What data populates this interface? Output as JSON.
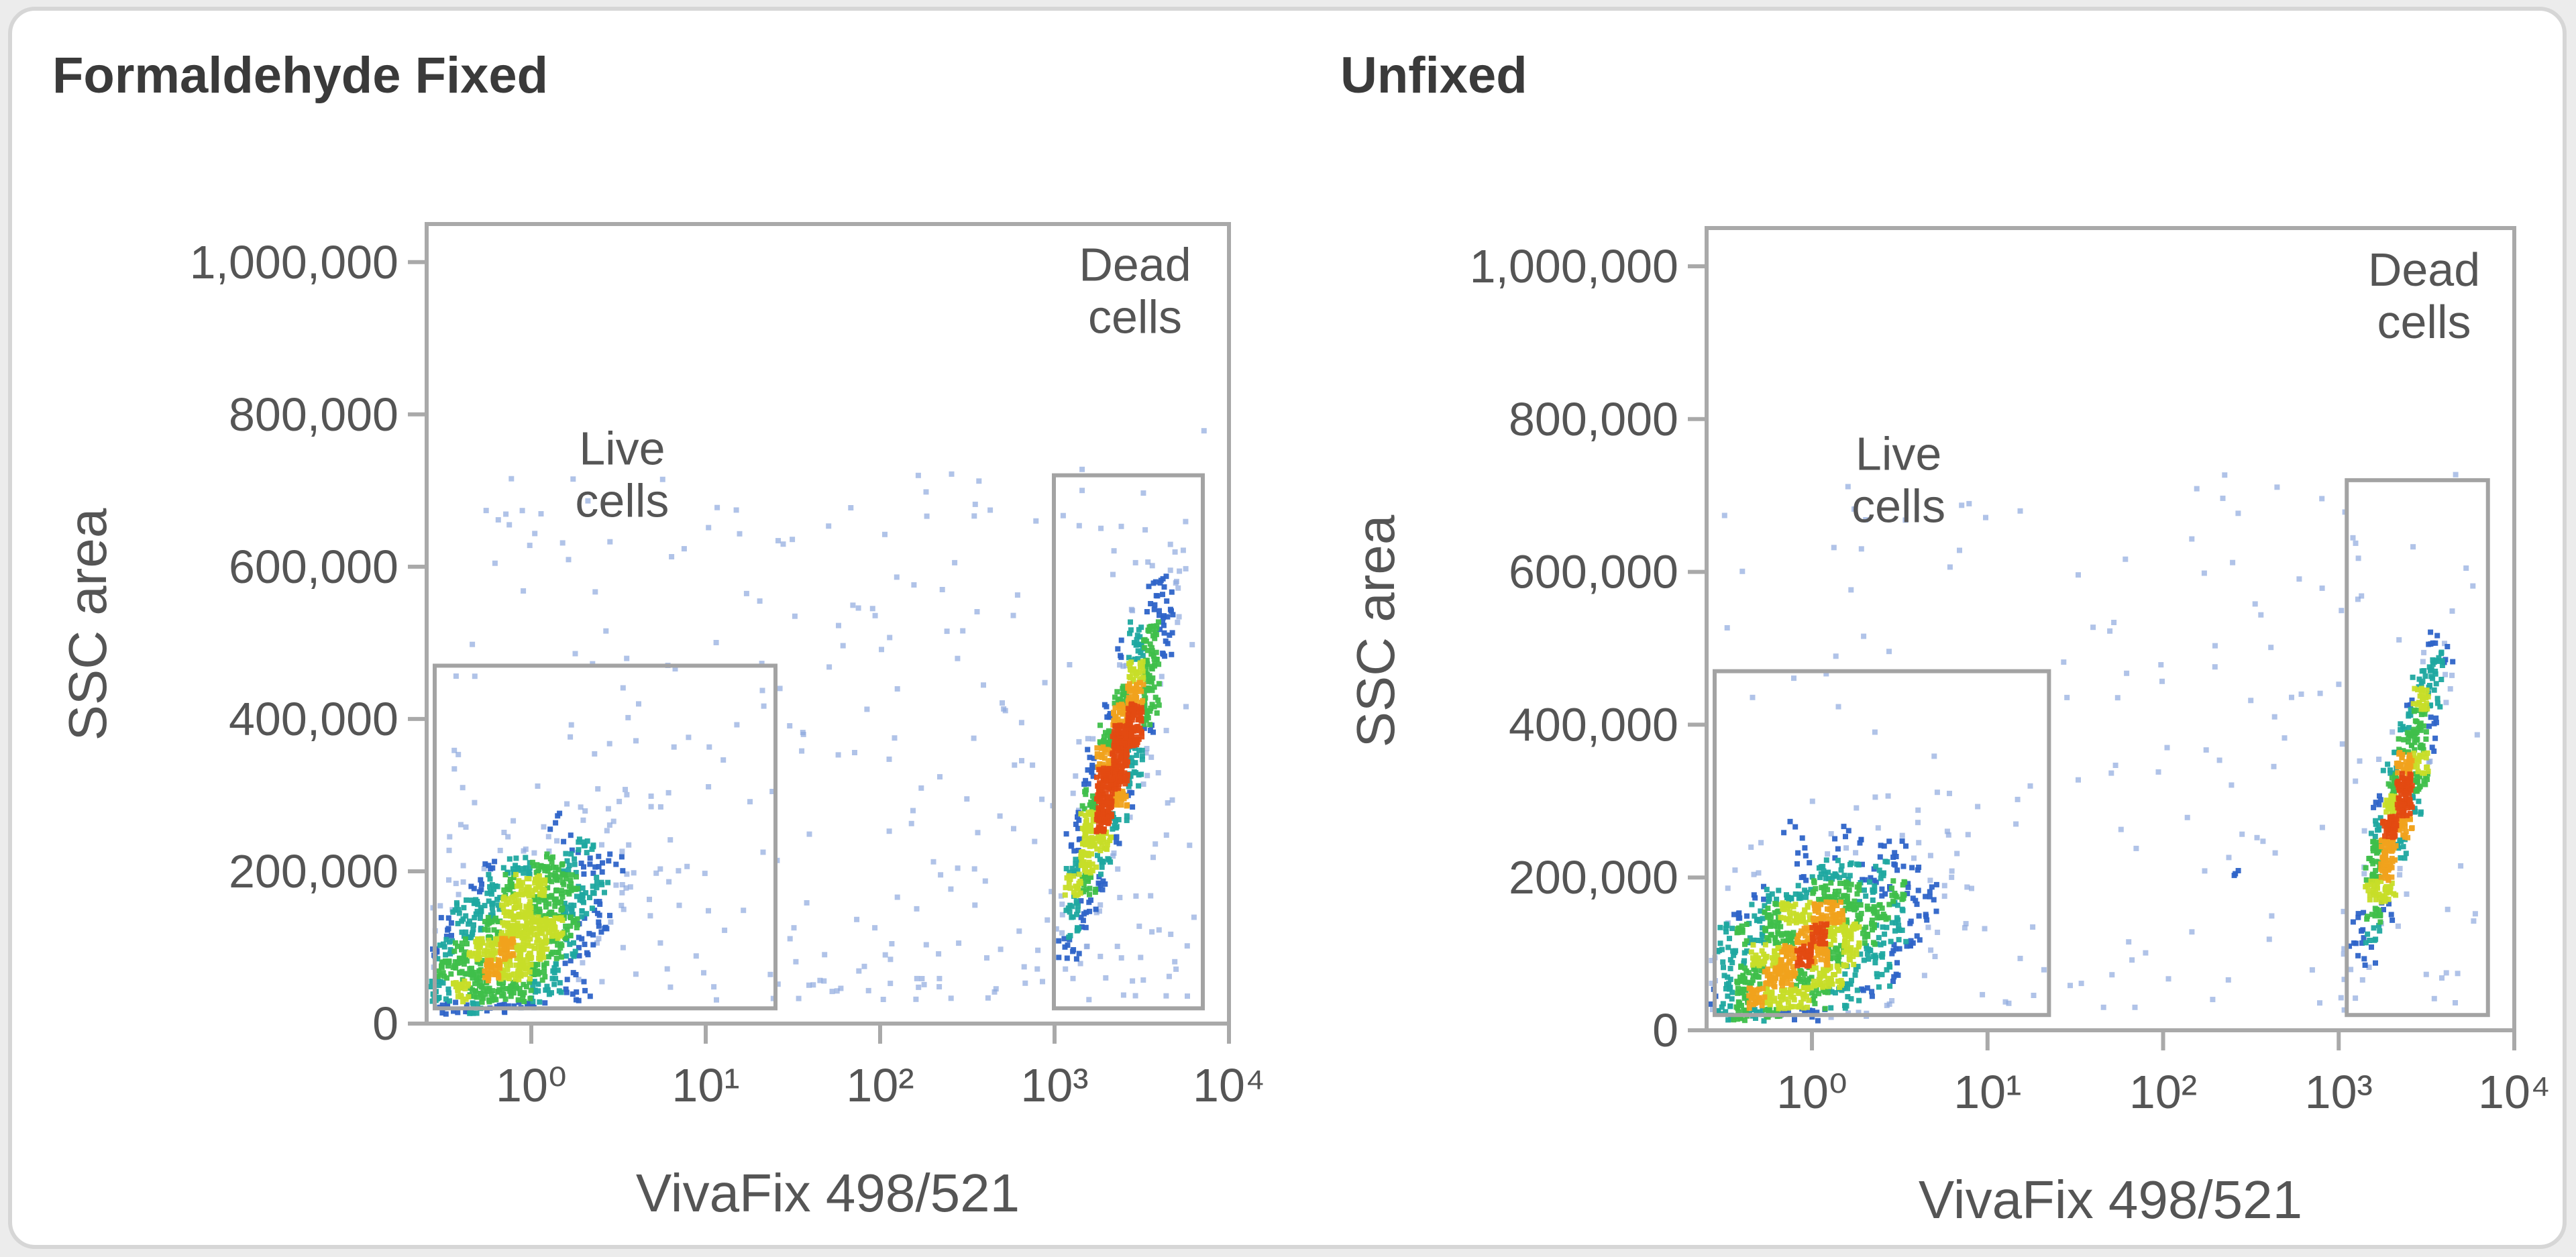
{
  "chart_data": [
    {
      "type": "scatter",
      "title": "Formaldehyde Fixed",
      "xlabel": "VivaFix 498/521",
      "ylabel": "SSC area",
      "x_scale": "log",
      "xlim_log10": [
        -0.6,
        4
      ],
      "ylim": [
        0,
        1050000
      ],
      "x_ticks": [
        {
          "value_log10": 0,
          "label": "10⁰"
        },
        {
          "value_log10": 1,
          "label": "10¹"
        },
        {
          "value_log10": 2,
          "label": "10²"
        },
        {
          "value_log10": 3,
          "label": "10³"
        },
        {
          "value_log10": 4,
          "label": "10⁴"
        }
      ],
      "y_ticks": [
        {
          "value": 0,
          "label": "0"
        },
        {
          "value": 200000,
          "label": "200,000"
        },
        {
          "value": 400000,
          "label": "400,000"
        },
        {
          "value": 600000,
          "label": "600,000"
        },
        {
          "value": 800000,
          "label": "800,000"
        },
        {
          "value": 1000000,
          "label": "1,000,000"
        }
      ],
      "gates": [
        {
          "name": "live",
          "label_lines": [
            "Live",
            "cells"
          ],
          "x_log10": [
            -0.6,
            1.4
          ],
          "y": [
            20000,
            470000
          ]
        },
        {
          "name": "dead",
          "label_lines": [
            "Dead",
            "cells"
          ],
          "x_log10": [
            2.95,
            3.85
          ],
          "y": [
            20000,
            720000
          ]
        }
      ],
      "populations": [
        {
          "name": "live",
          "n": 1300,
          "cx_log10": -0.1,
          "cy": 110000,
          "sx_log10": 0.28,
          "sy": 55000,
          "slope_per_decade": 120000
        },
        {
          "name": "dead",
          "n": 1100,
          "cx_log10": 3.35,
          "cy": 340000,
          "sx_log10": 0.14,
          "sy": 50000,
          "slope_per_decade": 650000
        },
        {
          "name": "scatter",
          "n": 320,
          "cx_log10": 1.8,
          "cy": 200000,
          "sx_log10": 0.8,
          "sy": 140000,
          "slope_per_decade": 0
        }
      ],
      "colormap": [
        "#d4dcef",
        "#8fa9de",
        "#2e64c8",
        "#1fa8a0",
        "#3fbf4a",
        "#c7dd28",
        "#f0a21c",
        "#e34a12"
      ]
    },
    {
      "type": "scatter",
      "title": "Unfixed",
      "xlabel": "VivaFix 498/521",
      "ylabel": "SSC area",
      "x_scale": "log",
      "xlim_log10": [
        -0.6,
        4
      ],
      "ylim": [
        0,
        1050000
      ],
      "x_ticks": [
        {
          "value_log10": 0,
          "label": "10⁰"
        },
        {
          "value_log10": 1,
          "label": "10¹"
        },
        {
          "value_log10": 2,
          "label": "10²"
        },
        {
          "value_log10": 3,
          "label": "10³"
        },
        {
          "value_log10": 4,
          "label": "10⁴"
        }
      ],
      "y_ticks": [
        {
          "value": 0,
          "label": "0"
        },
        {
          "value": 200000,
          "label": "200,000"
        },
        {
          "value": 400000,
          "label": "400,000"
        },
        {
          "value": 600000,
          "label": "600,000"
        },
        {
          "value": 800000,
          "label": "800,000"
        },
        {
          "value": 1000000,
          "label": "1,000,000"
        }
      ],
      "gates": [
        {
          "name": "live",
          "label_lines": [
            "Live",
            "cells"
          ],
          "x_log10": [
            -0.6,
            1.35
          ],
          "y": [
            20000,
            470000
          ]
        },
        {
          "name": "dead",
          "label_lines": [
            "Dead",
            "cells"
          ],
          "x_log10": [
            3.0,
            3.85
          ],
          "y": [
            20000,
            720000
          ]
        }
      ],
      "populations": [
        {
          "name": "live",
          "n": 1400,
          "cx_log10": -0.05,
          "cy": 100000,
          "sx_log10": 0.32,
          "sy": 55000,
          "slope_per_decade": 110000
        },
        {
          "name": "dead",
          "n": 650,
          "cx_log10": 3.35,
          "cy": 300000,
          "sx_log10": 0.12,
          "sy": 45000,
          "slope_per_decade": 700000
        },
        {
          "name": "scatter",
          "n": 180,
          "cx_log10": 2.0,
          "cy": 180000,
          "sx_log10": 0.8,
          "sy": 120000,
          "slope_per_decade": 0
        }
      ],
      "colormap": [
        "#d4dcef",
        "#8fa9de",
        "#2e64c8",
        "#1fa8a0",
        "#3fbf4a",
        "#c7dd28",
        "#f0a21c",
        "#e34a12"
      ]
    }
  ]
}
